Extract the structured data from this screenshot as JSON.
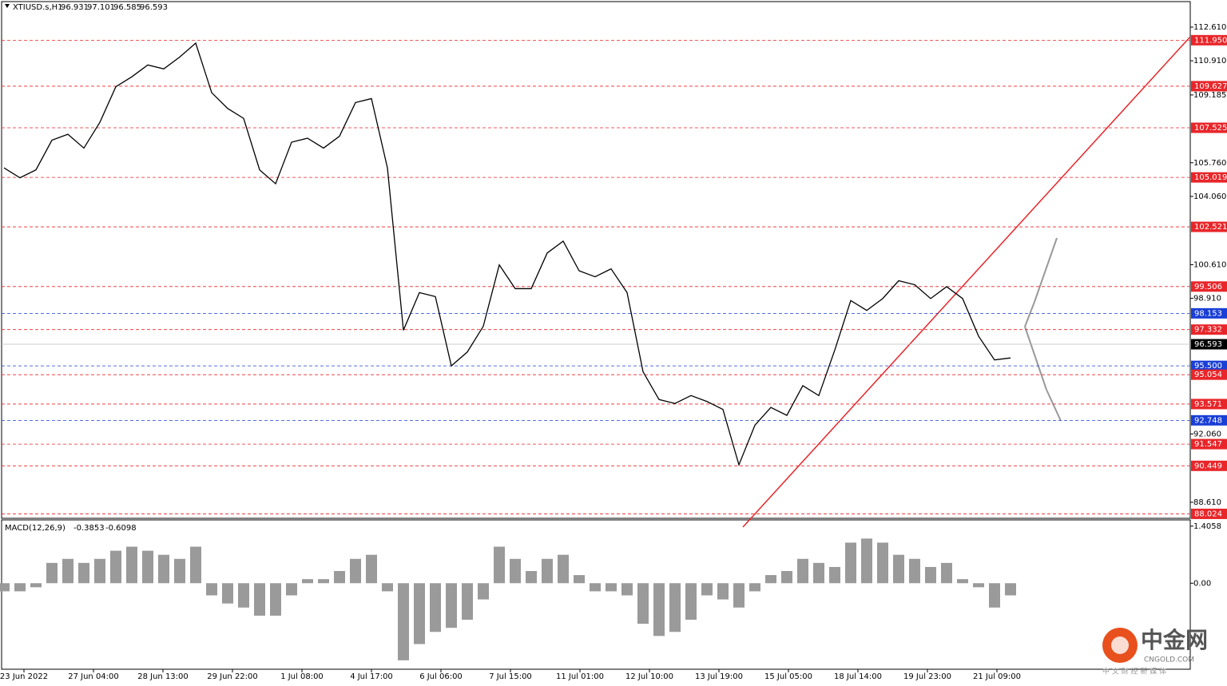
{
  "chart_data": [
    {
      "type": "line",
      "title": "XTIUSD.s,H1",
      "header_values": [
        96.931,
        97.101,
        96.585,
        96.593
      ],
      "xticks": [
        "23 Jun 2022",
        "27 Jun 04:00",
        "28 Jun 13:00",
        "29 Jun 22:00",
        "1 Jul 08:00",
        "4 Jul 17:00",
        "6 Jul 06:00",
        "7 Jul 15:00",
        "11 Jul 01:00",
        "12 Jul 10:00",
        "13 Jul 19:00",
        "15 Jul 05:00",
        "18 Jul 14:00",
        "19 Jul 23:00",
        "21 Jul 09:00"
      ],
      "ylim": [
        87.8,
        113.9
      ],
      "yticks": [
        {
          "value": 112.61,
          "label": "112.610"
        },
        {
          "value": 110.91,
          "label": "110.910"
        },
        {
          "value": 109.185,
          "label": "109.185"
        },
        {
          "value": 105.76,
          "label": "105.760"
        },
        {
          "value": 104.06,
          "label": "104.060"
        },
        {
          "value": 100.61,
          "label": "100.610"
        },
        {
          "value": 98.91,
          "label": "98.910"
        },
        {
          "value": 92.06,
          "label": "92.060"
        },
        {
          "value": 88.61,
          "label": "88.610"
        }
      ],
      "levels": [
        {
          "value": 111.95,
          "label": "111.950",
          "color": "#e8262a"
        },
        {
          "value": 109.627,
          "label": "109.627",
          "color": "#e8262a"
        },
        {
          "value": 107.525,
          "label": "107.525",
          "color": "#e8262a"
        },
        {
          "value": 105.019,
          "label": "105.019",
          "color": "#e8262a"
        },
        {
          "value": 102.521,
          "label": "102.521",
          "color": "#e8262a"
        },
        {
          "value": 99.506,
          "label": "99.506",
          "color": "#e8262a"
        },
        {
          "value": 98.153,
          "label": "98.153",
          "color": "#1a3fd6"
        },
        {
          "value": 97.332,
          "label": "97.332",
          "color": "#e8262a"
        },
        {
          "value": 95.5,
          "label": "95.500",
          "color": "#1a3fd6"
        },
        {
          "value": 95.054,
          "label": "95.054",
          "color": "#e8262a"
        },
        {
          "value": 93.571,
          "label": "93.571",
          "color": "#e8262a"
        },
        {
          "value": 92.748,
          "label": "92.748",
          "color": "#1a3fd6"
        },
        {
          "value": 91.547,
          "label": "91.547",
          "color": "#e8262a"
        },
        {
          "value": 90.449,
          "label": "90.449",
          "color": "#e8262a"
        },
        {
          "value": 88.024,
          "label": "88.024",
          "color": "#e8262a"
        }
      ],
      "last_price": 96.593,
      "series": [
        {
          "name": "XTIUSD.s,H1",
          "color": "#000000",
          "values": [
            105.5,
            105.0,
            105.4,
            106.9,
            107.2,
            106.5,
            107.8,
            109.6,
            110.1,
            110.7,
            110.5,
            111.1,
            111.8,
            109.3,
            108.5,
            108.0,
            105.4,
            104.7,
            106.8,
            107.0,
            106.5,
            107.1,
            108.8,
            109.0,
            105.5,
            97.3,
            99.2,
            99.0,
            95.5,
            96.2,
            97.5,
            100.6,
            99.4,
            99.4,
            101.2,
            101.8,
            100.3,
            100.0,
            100.4,
            99.2,
            95.2,
            93.8,
            93.6,
            94.0,
            93.7,
            93.3,
            90.5,
            92.5,
            93.4,
            93.0,
            94.5,
            94.0,
            96.3,
            98.8,
            98.3,
            98.9,
            99.8,
            99.6,
            98.9,
            99.5,
            98.9,
            97.0,
            95.8,
            95.9
          ]
        }
      ]
    },
    {
      "type": "bar",
      "title": "MACD(12,26,9)",
      "header_values": [
        -0.3853,
        -0.6098
      ],
      "ylim": [
        -2.12,
        1.56
      ],
      "yticks": [
        {
          "value": 1.4058,
          "label": "1.4058"
        },
        {
          "value": 0,
          "label": "0.00"
        }
      ],
      "color": "#9a9a9a",
      "values": [
        -0.2,
        -0.2,
        -0.1,
        0.5,
        0.6,
        0.5,
        0.6,
        0.8,
        0.9,
        0.8,
        0.7,
        0.6,
        0.9,
        -0.3,
        -0.5,
        -0.6,
        -0.8,
        -0.8,
        -0.3,
        0.1,
        0.1,
        0.3,
        0.6,
        0.7,
        -0.2,
        -1.9,
        -1.5,
        -1.2,
        -1.1,
        -0.9,
        -0.4,
        0.9,
        0.6,
        0.3,
        0.6,
        0.7,
        0.2,
        -0.2,
        -0.2,
        -0.3,
        -1.0,
        -1.3,
        -1.2,
        -0.9,
        -0.3,
        -0.4,
        -0.6,
        -0.2,
        0.2,
        0.3,
        0.6,
        0.5,
        0.4,
        1.0,
        1.1,
        1.0,
        0.7,
        0.6,
        0.4,
        0.5,
        0.1,
        -0.1,
        -0.6,
        -0.3
      ]
    }
  ],
  "watermark": {
    "name": "中金网",
    "domain": "CNGOLD.COM",
    "slogan": "中 文 财 经 新 媒 体"
  }
}
